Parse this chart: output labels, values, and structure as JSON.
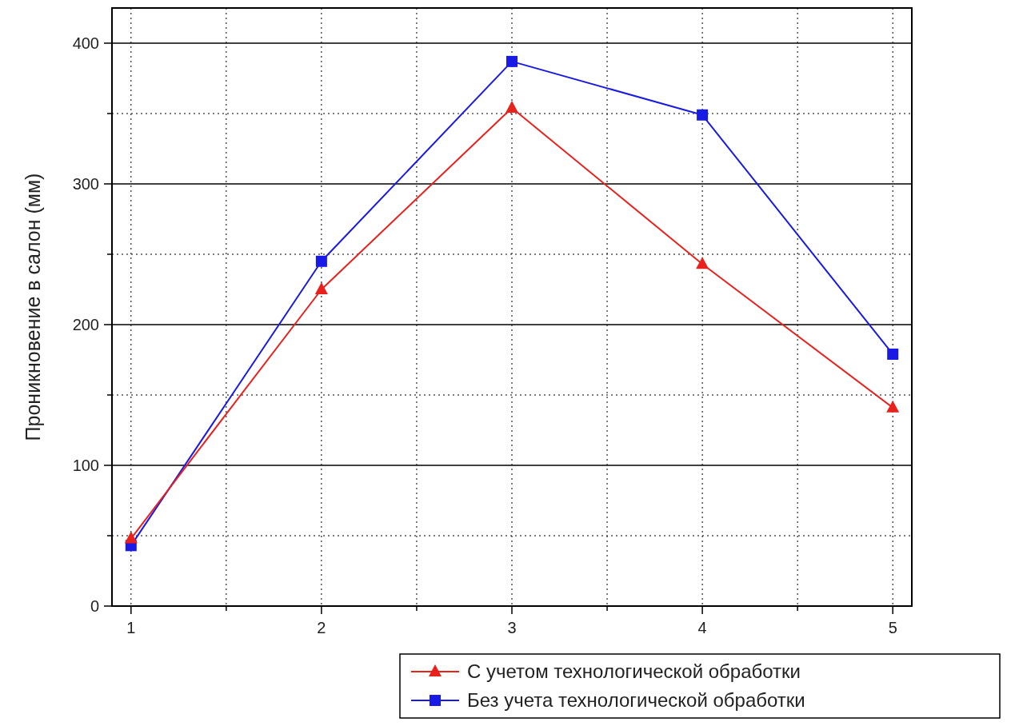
{
  "chart_data": {
    "type": "line",
    "ylabel": "Проникновение в салон (мм)",
    "x": [
      1,
      2,
      3,
      4,
      5
    ],
    "xlim": [
      0.9,
      5.1
    ],
    "xticks": [
      1,
      {
        "value": 1.5,
        "label": null
      },
      2,
      {
        "value": 2.5,
        "label": null
      },
      3,
      {
        "value": 3.5,
        "label": null
      },
      4,
      {
        "value": 4.5,
        "label": null
      },
      5
    ],
    "ylim": [
      0,
      425
    ],
    "yticks": [
      0,
      {
        "value": 50,
        "label": null
      },
      100,
      {
        "value": 150,
        "label": null
      },
      200,
      {
        "value": 250,
        "label": null
      },
      300,
      {
        "value": 350,
        "label": null
      },
      400
    ],
    "grid": true,
    "legend": "bottom right",
    "line_style": "solid",
    "series": [
      {
        "name": "С учетом технологической обработки",
        "color": "#e8211c",
        "marker": "triangle",
        "values": [
          48,
          225,
          354,
          243,
          141
        ]
      },
      {
        "name": "Без учета технологической обработки",
        "color": "#1a1ae6",
        "marker": "square",
        "values": [
          43,
          245,
          387,
          349,
          179
        ]
      }
    ]
  }
}
